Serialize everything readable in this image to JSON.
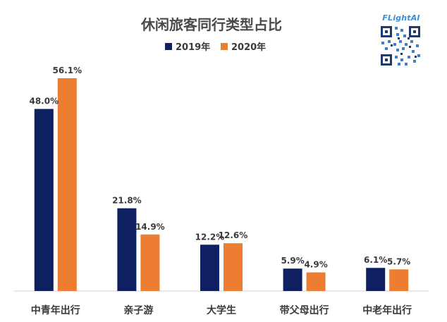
{
  "brand": {
    "text": "FLightAI",
    "color": "#3a8fd6",
    "logo_icon": "qr-code"
  },
  "colors": {
    "series_2019": "#0f2060",
    "series_2020": "#ed7d31",
    "text": "#3a3a3a",
    "title": "#4a4a4a",
    "baseline": "#d0d0d0"
  },
  "chart_data": {
    "type": "bar",
    "title": "休闲旅客同行类型占比",
    "xlabel": "",
    "ylabel": "",
    "ylim": [
      0,
      60
    ],
    "grid": false,
    "legend": "top-center",
    "categories": [
      "中青年出行",
      "亲子游",
      "大学生",
      "带父母出行",
      "中老年出行"
    ],
    "series": [
      {
        "name": "2019年",
        "values": [
          48.0,
          21.8,
          12.2,
          5.9,
          6.1
        ],
        "labels": [
          "48.0%",
          "21.8%",
          "12.2%",
          "5.9%",
          "6.1%"
        ]
      },
      {
        "name": "2020年",
        "values": [
          56.1,
          14.9,
          12.6,
          4.9,
          5.7
        ],
        "labels": [
          "56.1%",
          "14.9%",
          "12.6%",
          "4.9%",
          "5.7%"
        ]
      }
    ]
  }
}
